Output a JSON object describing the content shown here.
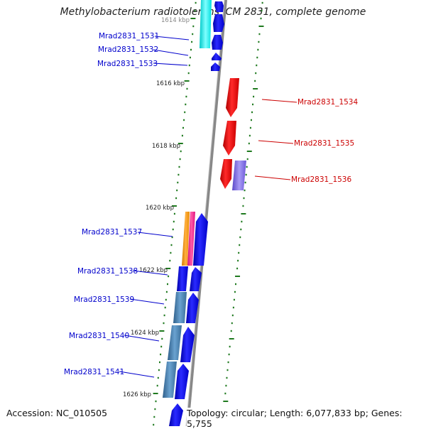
{
  "title": "Methylobacterium radiotolerans JCM 2831, complete genome",
  "footer": {
    "accession": "Accession: NC_010505",
    "info": "Topology: circular; Length: 6,077,833 bp; Genes: 5,755"
  },
  "colors": {
    "forward_label": "#0000cc",
    "reverse_label": "#cc0000",
    "tick": "#1f7a1f",
    "backbone": "#888888",
    "blue": "#0000ff",
    "red": "#ff0000",
    "cyan": "#00ffff",
    "steel": "#4682b4",
    "orange": "#ff9900",
    "pink": "#ff1493",
    "purple": "#7b68ee"
  },
  "scale_labels": [
    "1614 kbp",
    "1616 kbp",
    "1618 kbp",
    "1620 kbp",
    "1622 kbp",
    "1624 kbp",
    "1626 kbp"
  ],
  "genes": [
    {
      "label": "Mrad2831_1531",
      "strand": "forward"
    },
    {
      "label": "Mrad2831_1532",
      "strand": "forward"
    },
    {
      "label": "Mrad2831_1533",
      "strand": "forward"
    },
    {
      "label": "Mrad2831_1534",
      "strand": "reverse"
    },
    {
      "label": "Mrad2831_1535",
      "strand": "reverse"
    },
    {
      "label": "Mrad2831_1536",
      "strand": "reverse"
    },
    {
      "label": "Mrad2831_1537",
      "strand": "forward"
    },
    {
      "label": "Mrad2831_1538",
      "strand": "forward"
    },
    {
      "label": "Mrad2831_1539",
      "strand": "forward"
    },
    {
      "label": "Mrad2831_1540",
      "strand": "forward"
    },
    {
      "label": "Mrad2831_1541",
      "strand": "forward"
    }
  ]
}
